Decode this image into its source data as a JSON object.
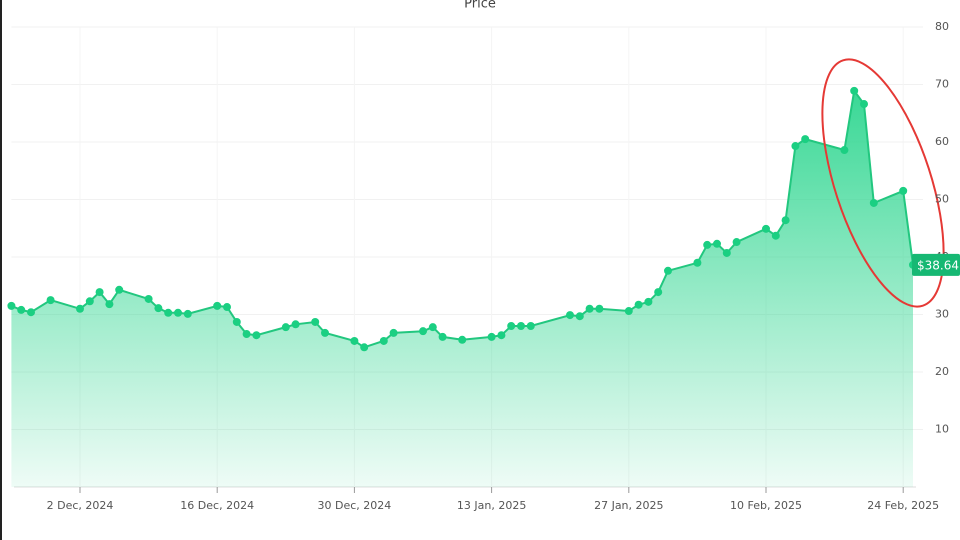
{
  "chart_data": {
    "type": "area",
    "title": "Price",
    "color": "#22c77f",
    "x": [
      "2024-11-25",
      "2024-11-26",
      "2024-11-27",
      "2024-11-29",
      "2024-12-02",
      "2024-12-03",
      "2024-12-04",
      "2024-12-05",
      "2024-12-06",
      "2024-12-09",
      "2024-12-10",
      "2024-12-11",
      "2024-12-12",
      "2024-12-13",
      "2024-12-16",
      "2024-12-17",
      "2024-12-18",
      "2024-12-19",
      "2024-12-20",
      "2024-12-23",
      "2024-12-24",
      "2024-12-26",
      "2024-12-27",
      "2024-12-30",
      "2024-12-31",
      "2025-01-02",
      "2025-01-03",
      "2025-01-06",
      "2025-01-07",
      "2025-01-08",
      "2025-01-10",
      "2025-01-13",
      "2025-01-14",
      "2025-01-15",
      "2025-01-16",
      "2025-01-17",
      "2025-01-21",
      "2025-01-22",
      "2025-01-23",
      "2025-01-24",
      "2025-01-27",
      "2025-01-28",
      "2025-01-29",
      "2025-01-30",
      "2025-01-31",
      "2025-02-03",
      "2025-02-04",
      "2025-02-05",
      "2025-02-06",
      "2025-02-07",
      "2025-02-10",
      "2025-02-11",
      "2025-02-12",
      "2025-02-13",
      "2025-02-14",
      "2025-02-18",
      "2025-02-19",
      "2025-02-20",
      "2025-02-21",
      "2025-02-24",
      "2025-02-25"
    ],
    "values": [
      31.5,
      30.8,
      30.4,
      32.5,
      31.0,
      32.3,
      33.9,
      31.8,
      34.3,
      32.7,
      31.1,
      30.3,
      30.3,
      30.1,
      31.5,
      31.3,
      28.7,
      26.6,
      26.4,
      27.8,
      28.3,
      28.7,
      26.8,
      25.4,
      24.3,
      25.4,
      26.8,
      27.1,
      27.8,
      26.1,
      25.6,
      26.1,
      26.4,
      28.0,
      28.0,
      28.0,
      29.9,
      29.7,
      31.0,
      31.0,
      30.6,
      31.7,
      32.2,
      33.9,
      37.6,
      39.0,
      42.1,
      42.3,
      40.7,
      42.6,
      44.9,
      43.7,
      46.4,
      59.3,
      60.5,
      58.6,
      68.9,
      66.6,
      49.4,
      51.5,
      38.64
    ],
    "last_value_label": "$38.64",
    "xlim": [
      "2024-11-25",
      "2025-02-25"
    ],
    "xticks": [
      {
        "value": "2024-12-02",
        "label": "2 Dec, 2024"
      },
      {
        "value": "2024-12-16",
        "label": "16 Dec, 2024"
      },
      {
        "value": "2024-12-30",
        "label": "30 Dec, 2024"
      },
      {
        "value": "2025-01-13",
        "label": "13 Jan, 2025"
      },
      {
        "value": "2025-01-27",
        "label": "27 Jan, 2025"
      },
      {
        "value": "2025-02-10",
        "label": "10 Feb, 2025"
      },
      {
        "value": "2025-02-24",
        "label": "24 Feb, 2025"
      }
    ],
    "ylim": [
      0,
      80
    ],
    "yticks": [
      10,
      20,
      30,
      40,
      50,
      60,
      70,
      80
    ],
    "grid": true
  }
}
